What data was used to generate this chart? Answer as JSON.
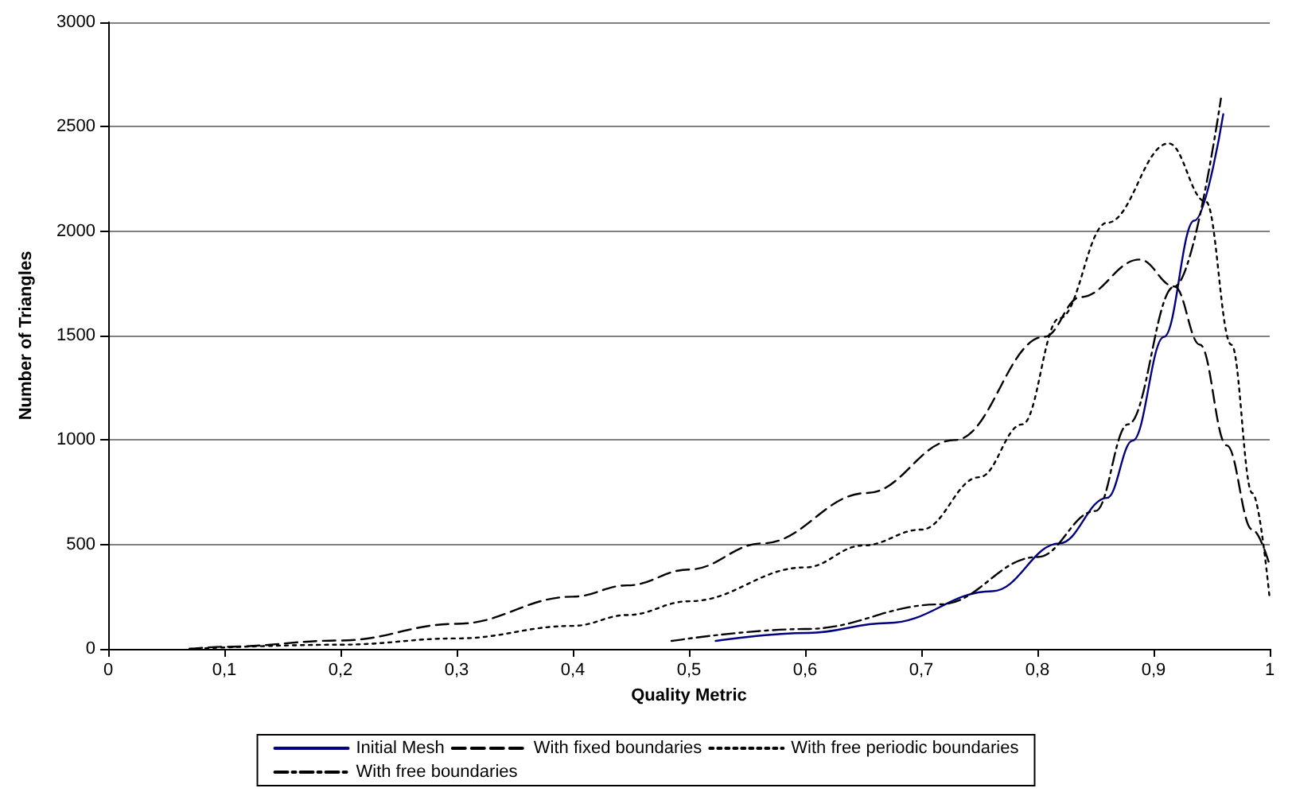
{
  "chart_data": {
    "type": "line",
    "xlabel": "Quality Metric",
    "ylabel": "Number of Triangles",
    "xlim": [
      0,
      1
    ],
    "ylim": [
      0,
      3000
    ],
    "xticks": [
      0,
      {
        "value": 0.1,
        "label": "0,1"
      },
      {
        "value": 0.2,
        "label": "0,2"
      },
      {
        "value": 0.3,
        "label": "0,3"
      },
      {
        "value": 0.4,
        "label": "0,4"
      },
      {
        "value": 0.5,
        "label": "0,5"
      },
      {
        "value": 0.6,
        "label": "0,6"
      },
      {
        "value": 0.7,
        "label": "0,7"
      },
      {
        "value": 0.8,
        "label": "0,8"
      },
      {
        "value": 0.9,
        "label": "0,9"
      },
      1
    ],
    "yticks": [
      0,
      500,
      1000,
      1500,
      2000,
      2500,
      3000
    ],
    "grid": "y",
    "legend": "bottom",
    "marker": "none",
    "series": [
      {
        "name": "Initial Mesh",
        "color": "#000080",
        "line_style": "solid",
        "x": [
          0.523,
          0.602,
          0.671,
          0.761,
          0.819,
          0.86,
          0.882,
          0.909,
          0.935,
          0.96
        ],
        "values": [
          38,
          76,
          124,
          276,
          505,
          723,
          997,
          1494,
          2050,
          2560
        ]
      },
      {
        "name": "With fixed boundaries",
        "color": "#000000",
        "line_style": "dashed",
        "x": [
          0.07,
          0.1,
          0.2,
          0.3,
          0.4,
          0.447,
          0.5,
          0.563,
          0.653,
          0.729,
          0.806,
          0.837,
          0.888,
          0.918,
          0.94,
          0.963,
          0.985,
          1.0
        ],
        "values": [
          0,
          10,
          40,
          120,
          250,
          304,
          380,
          505,
          746,
          1000,
          1494,
          1684,
          1864,
          1735,
          1456,
          974,
          571,
          400
        ]
      },
      {
        "name": "With free periodic boundaries",
        "color": "#000000",
        "line_style": "dotted",
        "x": [
          0.07,
          0.2,
          0.3,
          0.4,
          0.447,
          0.5,
          0.6,
          0.65,
          0.7,
          0.75,
          0.787,
          0.819,
          0.86,
          0.913,
          0.945,
          0.967,
          0.985,
          1.0
        ],
        "values": [
          0,
          20,
          50,
          110,
          162,
          228,
          390,
          495,
          571,
          822,
          1075,
          1583,
          2040,
          2420,
          2141,
          1456,
          746,
          238
        ]
      },
      {
        "name": "With free boundaries",
        "color": "#000000",
        "line_style": "dashdot",
        "x": [
          0.485,
          0.6,
          0.716,
          0.8,
          0.85,
          0.878,
          0.918,
          0.958
        ],
        "values": [
          38,
          95,
          213,
          440,
          660,
          1075,
          1735,
          2635
        ]
      }
    ]
  }
}
